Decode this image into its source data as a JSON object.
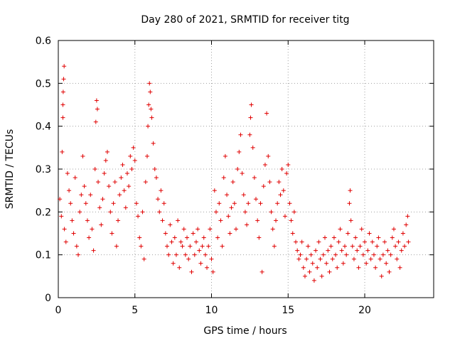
{
  "chart_data": {
    "type": "scatter",
    "title": "Day 280 of 2021, SRMTID for receiver titg",
    "xlabel": "GPS time / hours",
    "ylabel": "SRMTID / TECUs",
    "xlim": [
      0,
      24.5
    ],
    "ylim": [
      0,
      0.6
    ],
    "x_ticks": [
      0,
      5,
      10,
      15,
      20
    ],
    "x_tick_labels": [
      "0",
      "5",
      "10",
      "15",
      "20"
    ],
    "y_ticks": [
      0,
      0.1,
      0.2,
      0.3,
      0.4,
      0.5,
      0.6
    ],
    "y_tick_labels": [
      "0",
      "0.1",
      "0.2",
      "0.3",
      "0.4",
      "0.5",
      "0.6"
    ],
    "grid": true,
    "marker": "+",
    "color": "#e00000",
    "series": [
      {
        "name": "SRMTID",
        "points": [
          [
            0.1,
            0.23
          ],
          [
            0.2,
            0.19
          ],
          [
            0.25,
            0.34
          ],
          [
            0.3,
            0.42
          ],
          [
            0.3,
            0.45
          ],
          [
            0.32,
            0.48
          ],
          [
            0.35,
            0.51
          ],
          [
            0.38,
            0.54
          ],
          [
            0.4,
            0.16
          ],
          [
            0.5,
            0.13
          ],
          [
            0.6,
            0.29
          ],
          [
            0.7,
            0.25
          ],
          [
            0.8,
            0.22
          ],
          [
            0.9,
            0.18
          ],
          [
            1.0,
            0.15
          ],
          [
            1.1,
            0.28
          ],
          [
            1.2,
            0.12
          ],
          [
            1.3,
            0.1
          ],
          [
            1.4,
            0.2
          ],
          [
            1.5,
            0.24
          ],
          [
            1.6,
            0.33
          ],
          [
            1.7,
            0.26
          ],
          [
            1.8,
            0.22
          ],
          [
            1.9,
            0.18
          ],
          [
            2.0,
            0.14
          ],
          [
            2.1,
            0.24
          ],
          [
            2.2,
            0.16
          ],
          [
            2.3,
            0.11
          ],
          [
            2.4,
            0.3
          ],
          [
            2.45,
            0.41
          ],
          [
            2.5,
            0.46
          ],
          [
            2.55,
            0.44
          ],
          [
            2.6,
            0.27
          ],
          [
            2.7,
            0.21
          ],
          [
            2.8,
            0.17
          ],
          [
            2.9,
            0.23
          ],
          [
            3.0,
            0.29
          ],
          [
            3.1,
            0.32
          ],
          [
            3.2,
            0.34
          ],
          [
            3.3,
            0.26
          ],
          [
            3.4,
            0.2
          ],
          [
            3.5,
            0.15
          ],
          [
            3.6,
            0.22
          ],
          [
            3.7,
            0.27
          ],
          [
            3.8,
            0.12
          ],
          [
            3.9,
            0.18
          ],
          [
            4.0,
            0.24
          ],
          [
            4.1,
            0.28
          ],
          [
            4.2,
            0.31
          ],
          [
            4.3,
            0.25
          ],
          [
            4.4,
            0.21
          ],
          [
            4.5,
            0.29
          ],
          [
            4.6,
            0.26
          ],
          [
            4.7,
            0.33
          ],
          [
            4.8,
            0.3
          ],
          [
            4.9,
            0.35
          ],
          [
            5.0,
            0.32
          ],
          [
            5.1,
            0.22
          ],
          [
            5.2,
            0.19
          ],
          [
            5.3,
            0.14
          ],
          [
            5.4,
            0.12
          ],
          [
            5.5,
            0.2
          ],
          [
            5.6,
            0.09
          ],
          [
            5.7,
            0.27
          ],
          [
            5.8,
            0.33
          ],
          [
            5.85,
            0.4
          ],
          [
            5.9,
            0.45
          ],
          [
            5.95,
            0.5
          ],
          [
            6.0,
            0.48
          ],
          [
            6.05,
            0.44
          ],
          [
            6.1,
            0.42
          ],
          [
            6.2,
            0.36
          ],
          [
            6.3,
            0.3
          ],
          [
            6.4,
            0.28
          ],
          [
            6.5,
            0.23
          ],
          [
            6.6,
            0.2
          ],
          [
            6.7,
            0.25
          ],
          [
            6.8,
            0.18
          ],
          [
            6.9,
            0.22
          ],
          [
            7.0,
            0.15
          ],
          [
            7.1,
            0.12
          ],
          [
            7.2,
            0.1
          ],
          [
            7.3,
            0.17
          ],
          [
            7.4,
            0.13
          ],
          [
            7.5,
            0.08
          ],
          [
            7.6,
            0.14
          ],
          [
            7.7,
            0.1
          ],
          [
            7.8,
            0.18
          ],
          [
            7.9,
            0.07
          ],
          [
            8.0,
            0.13
          ],
          [
            8.1,
            0.12
          ],
          [
            8.2,
            0.16
          ],
          [
            8.3,
            0.1
          ],
          [
            8.4,
            0.14
          ],
          [
            8.5,
            0.09
          ],
          [
            8.6,
            0.12
          ],
          [
            8.7,
            0.06
          ],
          [
            8.8,
            0.15
          ],
          [
            8.9,
            0.1
          ],
          [
            9.0,
            0.13
          ],
          [
            9.1,
            0.16
          ],
          [
            9.2,
            0.11
          ],
          [
            9.3,
            0.08
          ],
          [
            9.4,
            0.12
          ],
          [
            9.5,
            0.14
          ],
          [
            9.6,
            0.1
          ],
          [
            9.7,
            0.07
          ],
          [
            9.8,
            0.12
          ],
          [
            9.9,
            0.16
          ],
          [
            10.0,
            0.09
          ],
          [
            10.1,
            0.06
          ],
          [
            10.2,
            0.25
          ],
          [
            10.3,
            0.2
          ],
          [
            10.4,
            0.14
          ],
          [
            10.5,
            0.22
          ],
          [
            10.6,
            0.18
          ],
          [
            10.7,
            0.12
          ],
          [
            10.8,
            0.28
          ],
          [
            10.9,
            0.33
          ],
          [
            11.0,
            0.24
          ],
          [
            11.1,
            0.19
          ],
          [
            11.2,
            0.15
          ],
          [
            11.3,
            0.21
          ],
          [
            11.4,
            0.27
          ],
          [
            11.5,
            0.22
          ],
          [
            11.6,
            0.16
          ],
          [
            11.7,
            0.3
          ],
          [
            11.8,
            0.34
          ],
          [
            11.9,
            0.38
          ],
          [
            12.0,
            0.29
          ],
          [
            12.1,
            0.24
          ],
          [
            12.2,
            0.2
          ],
          [
            12.3,
            0.17
          ],
          [
            12.4,
            0.22
          ],
          [
            12.5,
            0.38
          ],
          [
            12.55,
            0.42
          ],
          [
            12.6,
            0.45
          ],
          [
            12.7,
            0.35
          ],
          [
            12.8,
            0.28
          ],
          [
            12.9,
            0.23
          ],
          [
            13.0,
            0.18
          ],
          [
            13.1,
            0.14
          ],
          [
            13.2,
            0.22
          ],
          [
            13.3,
            0.06
          ],
          [
            13.4,
            0.26
          ],
          [
            13.5,
            0.31
          ],
          [
            13.6,
            0.43
          ],
          [
            13.7,
            0.33
          ],
          [
            13.8,
            0.27
          ],
          [
            13.9,
            0.2
          ],
          [
            14.0,
            0.16
          ],
          [
            14.1,
            0.12
          ],
          [
            14.2,
            0.18
          ],
          [
            14.3,
            0.22
          ],
          [
            14.4,
            0.27
          ],
          [
            14.5,
            0.24
          ],
          [
            14.6,
            0.3
          ],
          [
            14.7,
            0.25
          ],
          [
            14.8,
            0.19
          ],
          [
            14.9,
            0.29
          ],
          [
            15.0,
            0.31
          ],
          [
            15.1,
            0.22
          ],
          [
            15.2,
            0.18
          ],
          [
            15.3,
            0.15
          ],
          [
            15.4,
            0.2
          ],
          [
            15.5,
            0.13
          ],
          [
            15.6,
            0.11
          ],
          [
            15.7,
            0.09
          ],
          [
            15.8,
            0.1
          ],
          [
            15.9,
            0.13
          ],
          [
            16.0,
            0.07
          ],
          [
            16.1,
            0.05
          ],
          [
            16.2,
            0.09
          ],
          [
            16.3,
            0.12
          ],
          [
            16.4,
            0.06
          ],
          [
            16.5,
            0.1
          ],
          [
            16.6,
            0.08
          ],
          [
            16.7,
            0.04
          ],
          [
            16.8,
            0.11
          ],
          [
            16.9,
            0.07
          ],
          [
            17.0,
            0.13
          ],
          [
            17.1,
            0.09
          ],
          [
            17.2,
            0.05
          ],
          [
            17.3,
            0.1
          ],
          [
            17.4,
            0.14
          ],
          [
            17.5,
            0.08
          ],
          [
            17.6,
            0.11
          ],
          [
            17.7,
            0.06
          ],
          [
            17.8,
            0.12
          ],
          [
            17.9,
            0.09
          ],
          [
            18.0,
            0.14
          ],
          [
            18.1,
            0.1
          ],
          [
            18.2,
            0.07
          ],
          [
            18.3,
            0.13
          ],
          [
            18.4,
            0.16
          ],
          [
            18.5,
            0.11
          ],
          [
            18.6,
            0.08
          ],
          [
            18.7,
            0.12
          ],
          [
            18.8,
            0.1
          ],
          [
            18.9,
            0.15
          ],
          [
            19.0,
            0.22
          ],
          [
            19.05,
            0.25
          ],
          [
            19.1,
            0.18
          ],
          [
            19.2,
            0.12
          ],
          [
            19.3,
            0.09
          ],
          [
            19.4,
            0.14
          ],
          [
            19.5,
            0.11
          ],
          [
            19.6,
            0.07
          ],
          [
            19.7,
            0.12
          ],
          [
            19.8,
            0.16
          ],
          [
            19.9,
            0.1
          ],
          [
            20.0,
            0.13
          ],
          [
            20.1,
            0.08
          ],
          [
            20.2,
            0.11
          ],
          [
            20.3,
            0.15
          ],
          [
            20.4,
            0.09
          ],
          [
            20.5,
            0.13
          ],
          [
            20.6,
            0.1
          ],
          [
            20.7,
            0.07
          ],
          [
            20.8,
            0.12
          ],
          [
            20.9,
            0.14
          ],
          [
            21.0,
            0.09
          ],
          [
            21.1,
            0.05
          ],
          [
            21.2,
            0.1
          ],
          [
            21.3,
            0.13
          ],
          [
            21.4,
            0.08
          ],
          [
            21.5,
            0.11
          ],
          [
            21.6,
            0.06
          ],
          [
            21.7,
            0.1
          ],
          [
            21.8,
            0.14
          ],
          [
            21.9,
            0.16
          ],
          [
            22.0,
            0.12
          ],
          [
            22.1,
            0.09
          ],
          [
            22.2,
            0.13
          ],
          [
            22.3,
            0.07
          ],
          [
            22.4,
            0.11
          ],
          [
            22.5,
            0.15
          ],
          [
            22.6,
            0.12
          ],
          [
            22.7,
            0.17
          ],
          [
            22.8,
            0.19
          ],
          [
            22.85,
            0.13
          ]
        ]
      }
    ]
  }
}
